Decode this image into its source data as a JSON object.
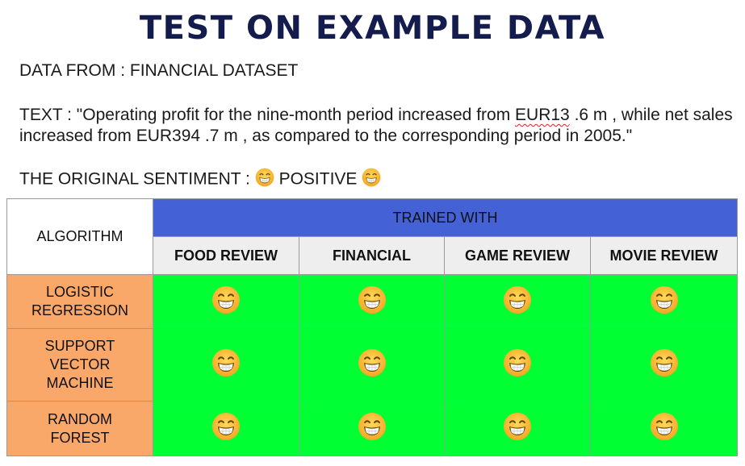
{
  "title": "TEST ON EXAMPLE DATA",
  "data_from": "DATA FROM : FINANCIAL DATASET",
  "text_line1_pre": "TEXT : \"Operating profit for the nine-month period increased from ",
  "text_line1_flag": "EUR13",
  "text_line1_post": " .6 m , while net sales",
  "text_line2": "increased from EUR394 .7 m , as compared to the corresponding period in 2005.\"",
  "sentiment_label": "THE ORIGINAL SENTIMENT :",
  "sentiment_value": "POSITIVE",
  "icon_name": "grinning-face-icon",
  "table": {
    "algorithm_header": "ALGORITHM",
    "trained_with_header": "TRAINED WITH",
    "columns": [
      "FOOD REVIEW",
      "FINANCIAL",
      "GAME REVIEW",
      "MOVIE REVIEW"
    ],
    "rows": [
      {
        "label_lines": [
          "LOGISTIC",
          "REGRESSION"
        ],
        "results": [
          "grinning-face-icon",
          "grinning-face-icon",
          "grinning-face-icon",
          "grinning-face-icon"
        ]
      },
      {
        "label_lines": [
          "SUPPORT",
          "VECTOR",
          "MACHINE"
        ],
        "results": [
          "grinning-face-icon",
          "grinning-face-icon",
          "grinning-face-icon",
          "grinning-face-icon"
        ]
      },
      {
        "label_lines": [
          "RANDOM",
          "FOREST"
        ],
        "results": [
          "grinning-face-icon",
          "grinning-face-icon",
          "grinning-face-icon",
          "grinning-face-icon"
        ]
      }
    ]
  },
  "colors": {
    "title": "#141b4d",
    "trained_header_bg": "#4461d6",
    "column_header_bg": "#eeeeee",
    "row_header_bg": "#f9a86a",
    "result_cell_bg": "#00ff33"
  }
}
